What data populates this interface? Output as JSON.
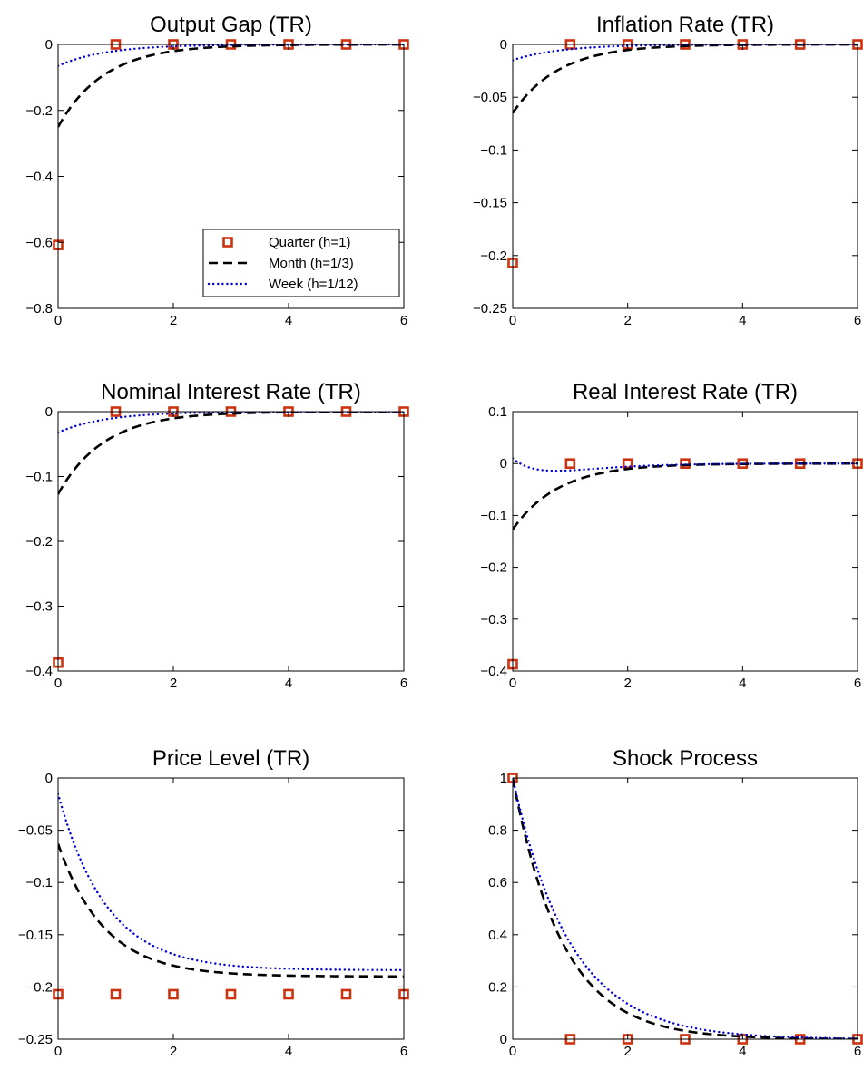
{
  "colors": {
    "quarter": "#cc3311",
    "month": "#000000",
    "week": "#0000dd",
    "axes": "#000000",
    "background": "#ffffff"
  },
  "legend": {
    "location": "bottom-right of first panel",
    "entries": [
      {
        "key": "quarter",
        "label": "Quarter (h=1)",
        "marker": "square"
      },
      {
        "key": "month",
        "label": "Month (h=1/3)",
        "marker": "dashed-line"
      },
      {
        "key": "week",
        "label": "Week (h=1/12)",
        "marker": "dotted-line"
      }
    ]
  },
  "chart_data": [
    {
      "type": "line",
      "title": "Output Gap (TR)",
      "xlim": [
        0,
        6
      ],
      "ylim": [
        -0.8,
        0
      ],
      "xticks": [
        0,
        2,
        4,
        6
      ],
      "yticks": [
        0,
        -0.2,
        -0.4,
        -0.6,
        -0.8
      ],
      "ytick_labels": [
        "0",
        "−0.2",
        "−0.4",
        "−0.6",
        "−0.8"
      ],
      "grid": false,
      "series": [
        {
          "name": "Quarter (h=1)",
          "key": "quarter",
          "style": "markers",
          "x": [
            0,
            1,
            2,
            3,
            4,
            5,
            6
          ],
          "y": [
            -0.608,
            0,
            0,
            0,
            0,
            0,
            0
          ]
        },
        {
          "name": "Month (h=1/3)",
          "key": "month",
          "style": "dashed",
          "curve": {
            "kind": "decay",
            "a": -0.25,
            "r": 1.25
          }
        },
        {
          "name": "Week (h=1/12)",
          "key": "week",
          "style": "dotted",
          "curve": {
            "kind": "decay",
            "a": -0.065,
            "r": 1.2
          }
        }
      ]
    },
    {
      "type": "line",
      "title": "Inflation Rate (TR)",
      "xlim": [
        0,
        6
      ],
      "ylim": [
        -0.25,
        0
      ],
      "xticks": [
        0,
        2,
        4,
        6
      ],
      "yticks": [
        0,
        -0.05,
        -0.1,
        -0.15,
        -0.2,
        -0.25
      ],
      "ytick_labels": [
        "0",
        "−0.05",
        "−0.1",
        "−0.15",
        "−0.2",
        "−0.25"
      ],
      "grid": false,
      "series": [
        {
          "name": "Quarter (h=1)",
          "key": "quarter",
          "style": "markers",
          "x": [
            0,
            1,
            2,
            3,
            4,
            5,
            6
          ],
          "y": [
            -0.207,
            0,
            0,
            0,
            0,
            0,
            0
          ]
        },
        {
          "name": "Month (h=1/3)",
          "key": "month",
          "style": "dashed",
          "curve": {
            "kind": "decay",
            "a": -0.065,
            "r": 1.25
          }
        },
        {
          "name": "Week (h=1/12)",
          "key": "week",
          "style": "dotted",
          "curve": {
            "kind": "decay",
            "a": -0.015,
            "r": 1.2
          }
        }
      ]
    },
    {
      "type": "line",
      "title": "Nominal Interest Rate (TR)",
      "xlim": [
        0,
        6
      ],
      "ylim": [
        -0.4,
        0
      ],
      "xticks": [
        0,
        2,
        4,
        6
      ],
      "yticks": [
        0,
        -0.1,
        -0.2,
        -0.3,
        -0.4
      ],
      "ytick_labels": [
        "0",
        "−0.1",
        "−0.2",
        "−0.3",
        "−0.4"
      ],
      "grid": false,
      "series": [
        {
          "name": "Quarter (h=1)",
          "key": "quarter",
          "style": "markers",
          "x": [
            0,
            1,
            2,
            3,
            4,
            5,
            6
          ],
          "y": [
            -0.387,
            0,
            0,
            0,
            0,
            0,
            0
          ]
        },
        {
          "name": "Month (h=1/3)",
          "key": "month",
          "style": "dashed",
          "curve": {
            "kind": "decay",
            "a": -0.127,
            "r": 1.25
          }
        },
        {
          "name": "Week (h=1/12)",
          "key": "week",
          "style": "dotted",
          "curve": {
            "kind": "decay",
            "a": -0.032,
            "r": 1.2
          }
        }
      ]
    },
    {
      "type": "line",
      "title": "Real Interest Rate (TR)",
      "xlim": [
        0,
        6
      ],
      "ylim": [
        -0.4,
        0.1
      ],
      "xticks": [
        0,
        2,
        4,
        6
      ],
      "yticks": [
        0.1,
        0,
        -0.1,
        -0.2,
        -0.3,
        -0.4
      ],
      "ytick_labels": [
        "0.1",
        "0",
        "−0.1",
        "−0.2",
        "−0.3",
        "−0.4"
      ],
      "grid": false,
      "series": [
        {
          "name": "Quarter (h=1)",
          "key": "quarter",
          "style": "markers",
          "x": [
            0,
            1,
            2,
            3,
            4,
            5,
            6
          ],
          "y": [
            -0.387,
            0,
            0,
            0,
            0,
            0,
            0
          ]
        },
        {
          "name": "Month (h=1/3)",
          "key": "month",
          "style": "dashed",
          "curve": {
            "kind": "decay",
            "a": -0.127,
            "r": 1.25
          }
        },
        {
          "name": "Week (h=1/12)",
          "key": "week",
          "style": "dotted",
          "curve": {
            "kind": "dip",
            "a": 0.01,
            "b": -0.06,
            "r1": 1.5,
            "r2": 3.5
          }
        }
      ]
    },
    {
      "type": "line",
      "title": "Price Level (TR)",
      "xlim": [
        0,
        6
      ],
      "ylim": [
        -0.25,
        0
      ],
      "xticks": [
        0,
        2,
        4,
        6
      ],
      "yticks": [
        0,
        -0.05,
        -0.1,
        -0.15,
        -0.2,
        -0.25
      ],
      "ytick_labels": [
        "0",
        "−0.05",
        "−0.1",
        "−0.15",
        "−0.2",
        "−0.25"
      ],
      "grid": false,
      "series": [
        {
          "name": "Quarter (h=1)",
          "key": "quarter",
          "style": "markers",
          "x": [
            0,
            1,
            2,
            3,
            4,
            5,
            6
          ],
          "y": [
            -0.207,
            -0.207,
            -0.207,
            -0.207,
            -0.207,
            -0.207,
            -0.207
          ]
        },
        {
          "name": "Month (h=1/3)",
          "key": "month",
          "style": "dashed",
          "curve": {
            "kind": "level",
            "start": -0.063,
            "end": -0.19,
            "r": 1.25
          }
        },
        {
          "name": "Week (h=1/12)",
          "key": "week",
          "style": "dotted",
          "curve": {
            "kind": "level",
            "start": -0.015,
            "end": -0.184,
            "r": 1.2
          }
        }
      ]
    },
    {
      "type": "line",
      "title": "Shock Process",
      "xlim": [
        0,
        6
      ],
      "ylim": [
        0,
        1
      ],
      "xticks": [
        0,
        2,
        4,
        6
      ],
      "yticks": [
        1,
        0.8,
        0.6,
        0.4,
        0.2,
        0
      ],
      "ytick_labels": [
        "1",
        "0.8",
        "0.6",
        "0.4",
        "0.2",
        "0"
      ],
      "grid": false,
      "series": [
        {
          "name": "Quarter (h=1)",
          "key": "quarter",
          "style": "markers",
          "x": [
            0,
            1,
            2,
            3,
            4,
            5,
            6
          ],
          "y": [
            1,
            0,
            0,
            0,
            0,
            0,
            0
          ]
        },
        {
          "name": "Month (h=1/3)",
          "key": "month",
          "style": "dashed",
          "curve": {
            "kind": "decay",
            "a": 1,
            "r": 1.15
          }
        },
        {
          "name": "Week (h=1/12)",
          "key": "week",
          "style": "dotted",
          "curve": {
            "kind": "decay",
            "a": 1,
            "r": 1.0
          }
        }
      ]
    }
  ]
}
